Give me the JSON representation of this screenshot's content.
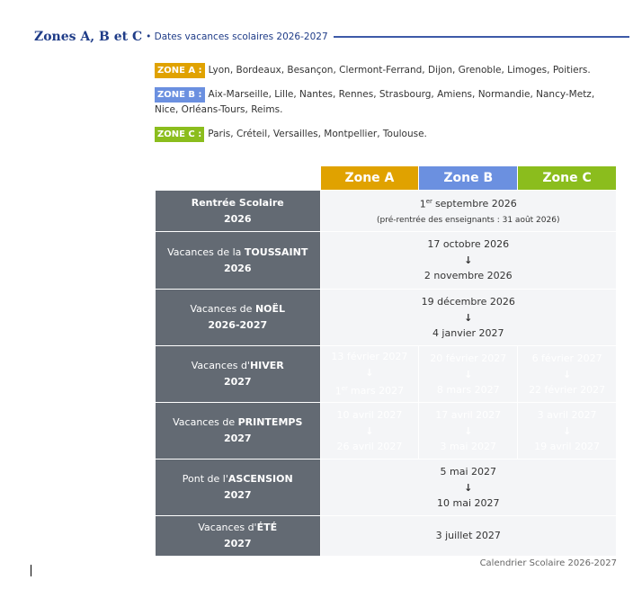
{
  "header": {
    "title": "Zones A, B et C",
    "subtitle": "• Dates vacances scolaires 2026-2027"
  },
  "zones": [
    {
      "label": "ZONE A :",
      "cities": "Lyon, Bordeaux, Besançon, Clermont-Ferrand, Dijon, Grenoble, Limoges, Poitiers."
    },
    {
      "label": "ZONE B :",
      "cities": "Aix-Marseille, Lille, Nantes, Rennes, Strasbourg, Amiens, Normandie, Nancy-Metz, Nice, Orléans-Tours, Reims."
    },
    {
      "label": "ZONE C :",
      "cities": "Paris, Créteil, Versailles, Montpellier, Toulouse."
    }
  ],
  "table": {
    "columns": [
      "Zone A",
      "Zone B",
      "Zone C"
    ],
    "rows": [
      {
        "label": {
          "bold": "Rentrée Scolaire",
          "year": "2026"
        },
        "all": {
          "date": {
            "num": "1",
            "sup": "er",
            "text": "septembre 2026"
          },
          "note": "(pré-rentrée des enseignants : 31 août 2026)"
        }
      },
      {
        "label": {
          "pre": "Vacances de la ",
          "bold": "TOUSSAINT",
          "year": "2026"
        },
        "all": {
          "start": "17 octobre 2026",
          "end": "2 novembre 2026"
        }
      },
      {
        "label": {
          "pre": "Vacances de ",
          "bold": "NOËL",
          "year": "2026-2027"
        },
        "all": {
          "start": "19 décembre 2026",
          "end": "4 janvier 2027"
        }
      },
      {
        "label": {
          "pre": "Vacances d'",
          "bold": "HIVER",
          "year": "2027"
        },
        "zones": [
          {
            "start": "13 février 2027",
            "end": {
              "num": "1",
              "sup": "er",
              "text": "mars 2027"
            }
          },
          {
            "start": "20 février 2027",
            "end": "8 mars 2027"
          },
          {
            "start": "6 février 2027",
            "end": "22 février 2027"
          }
        ]
      },
      {
        "label": {
          "pre": "Vacances de ",
          "bold": "PRINTEMPS",
          "year": "2027"
        },
        "zones": [
          {
            "start": "10 avril 2027",
            "end": "26 avril 2027"
          },
          {
            "start": "17 avril 2027",
            "end": "3 mai 2027"
          },
          {
            "start": "3 avril 2027",
            "end": "19 avril 2027"
          }
        ]
      },
      {
        "label": {
          "pre": "Pont de l'",
          "bold": "ASCENSION",
          "year": "2027"
        },
        "all": {
          "start": "5 mai 2027",
          "end": "10 mai 2027"
        }
      },
      {
        "label": {
          "pre": "Vacances d'",
          "bold": "ÉTÉ",
          "year": "2027"
        },
        "all": {
          "date": "3 juillet 2027"
        }
      }
    ]
  },
  "caption": "Calendrier Scolaire 2026-2027"
}
